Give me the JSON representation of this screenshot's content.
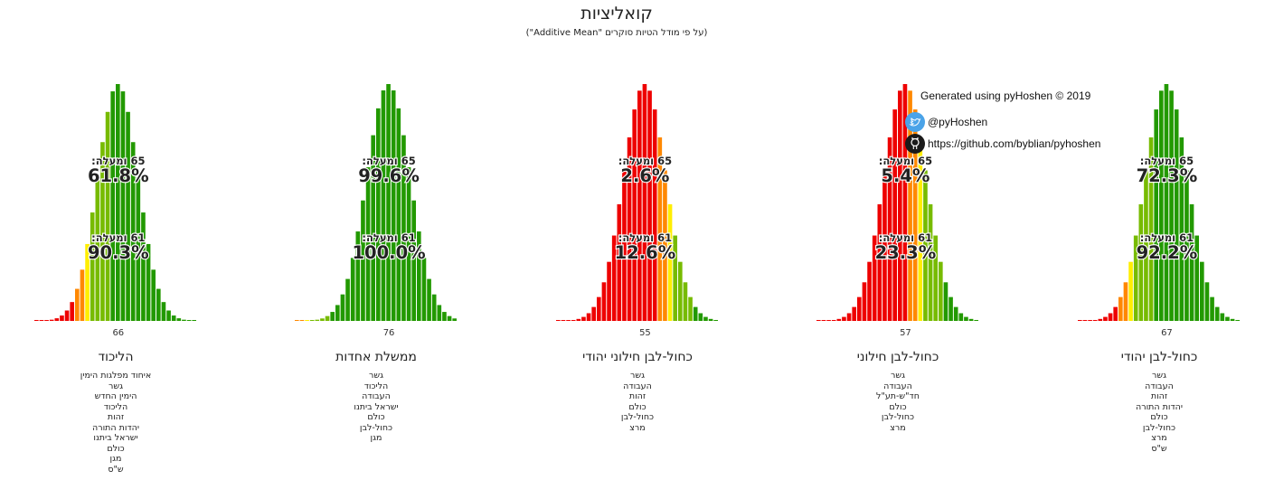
{
  "title": "קואליציות",
  "subtitle": "(על פי מודל הטיות סוקרים \"Additive Mean\")",
  "credits": {
    "generated": "Generated using pyHoshen © 2019",
    "twitter": "@pyHoshen",
    "github": "https://github.com/byblian/pyhoshen",
    "twitter_icon": "twitter-bird-icon",
    "github_icon": "github-octocat-icon"
  },
  "colors": {
    "majority": "#229900",
    "sixty_one_plus": "#77bb00",
    "sixty": "#ffee00",
    "near": "#ff8800",
    "below": "#ee0000"
  },
  "chart_data": [
    {
      "type": "bar",
      "name": "הליכוד",
      "mode_seats": "66",
      "xlim": [
        50,
        81
      ],
      "peak_seat": 66,
      "spread": 4,
      "p65_label": "65 ומעלה:",
      "p65_value": "61.8%",
      "p61_label": "61 ומעלה:",
      "p61_value": "90.3%",
      "parties": [
        "איחוד מפלגות הימין",
        "גשר",
        "הימין החדש",
        "הליכוד",
        "זהות",
        "יהדות התורה",
        "ישראל ביתנו",
        "כולם",
        "מגן",
        "ש\"ס"
      ]
    },
    {
      "type": "bar",
      "name": "ממשלת אחדות",
      "mode_seats": "76",
      "xlim": [
        58,
        89
      ],
      "peak_seat": 76,
      "spread": 4.3,
      "p65_label": "65 ומעלה:",
      "p65_value": "99.6%",
      "p61_label": "61 ומעלה:",
      "p61_value": "100.0%",
      "parties": [
        "גשר",
        "הליכוד",
        "העבודה",
        "ישראל ביתנו",
        "כולם",
        "כחול-לבן",
        "מגן"
      ]
    },
    {
      "type": "bar",
      "name": "כחול-לבן חילוני יהודי",
      "mode_seats": "55",
      "xlim": [
        38,
        69
      ],
      "peak_seat": 55,
      "spread": 4.2,
      "p65_label": "65 ומעלה:",
      "p65_value": "2.6%",
      "p61_label": "61 ומעלה:",
      "p61_value": "12.6%",
      "parties": [
        "גשר",
        "העבודה",
        "זהות",
        "כולם",
        "כחול-לבן",
        "מרצ"
      ]
    },
    {
      "type": "bar",
      "name": "כחול-לבן חילוני",
      "mode_seats": "57",
      "xlim": [
        40,
        71
      ],
      "peak_seat": 57,
      "spread": 4.2,
      "p65_label": "65 ומעלה:",
      "p65_value": "5.4%",
      "p61_label": "61 ומעלה:",
      "p61_value": "23.3%",
      "parties": [
        "גשר",
        "העבודה",
        "חד\"ש-תע\"ל",
        "כולם",
        "כחול-לבן",
        "מרצ"
      ]
    },
    {
      "type": "bar",
      "name": "כחול-לבן יהודי",
      "mode_seats": "67",
      "xlim": [
        50,
        81
      ],
      "peak_seat": 67,
      "spread": 4.2,
      "p65_label": "65 ומעלה:",
      "p65_value": "72.3%",
      "p61_label": "61 ומעלה:",
      "p61_value": "92.2%",
      "parties": [
        "גשר",
        "העבודה",
        "זהות",
        "יהדות התורה",
        "כולם",
        "כחול-לבן",
        "מרצ",
        "ש\"ס"
      ]
    }
  ]
}
